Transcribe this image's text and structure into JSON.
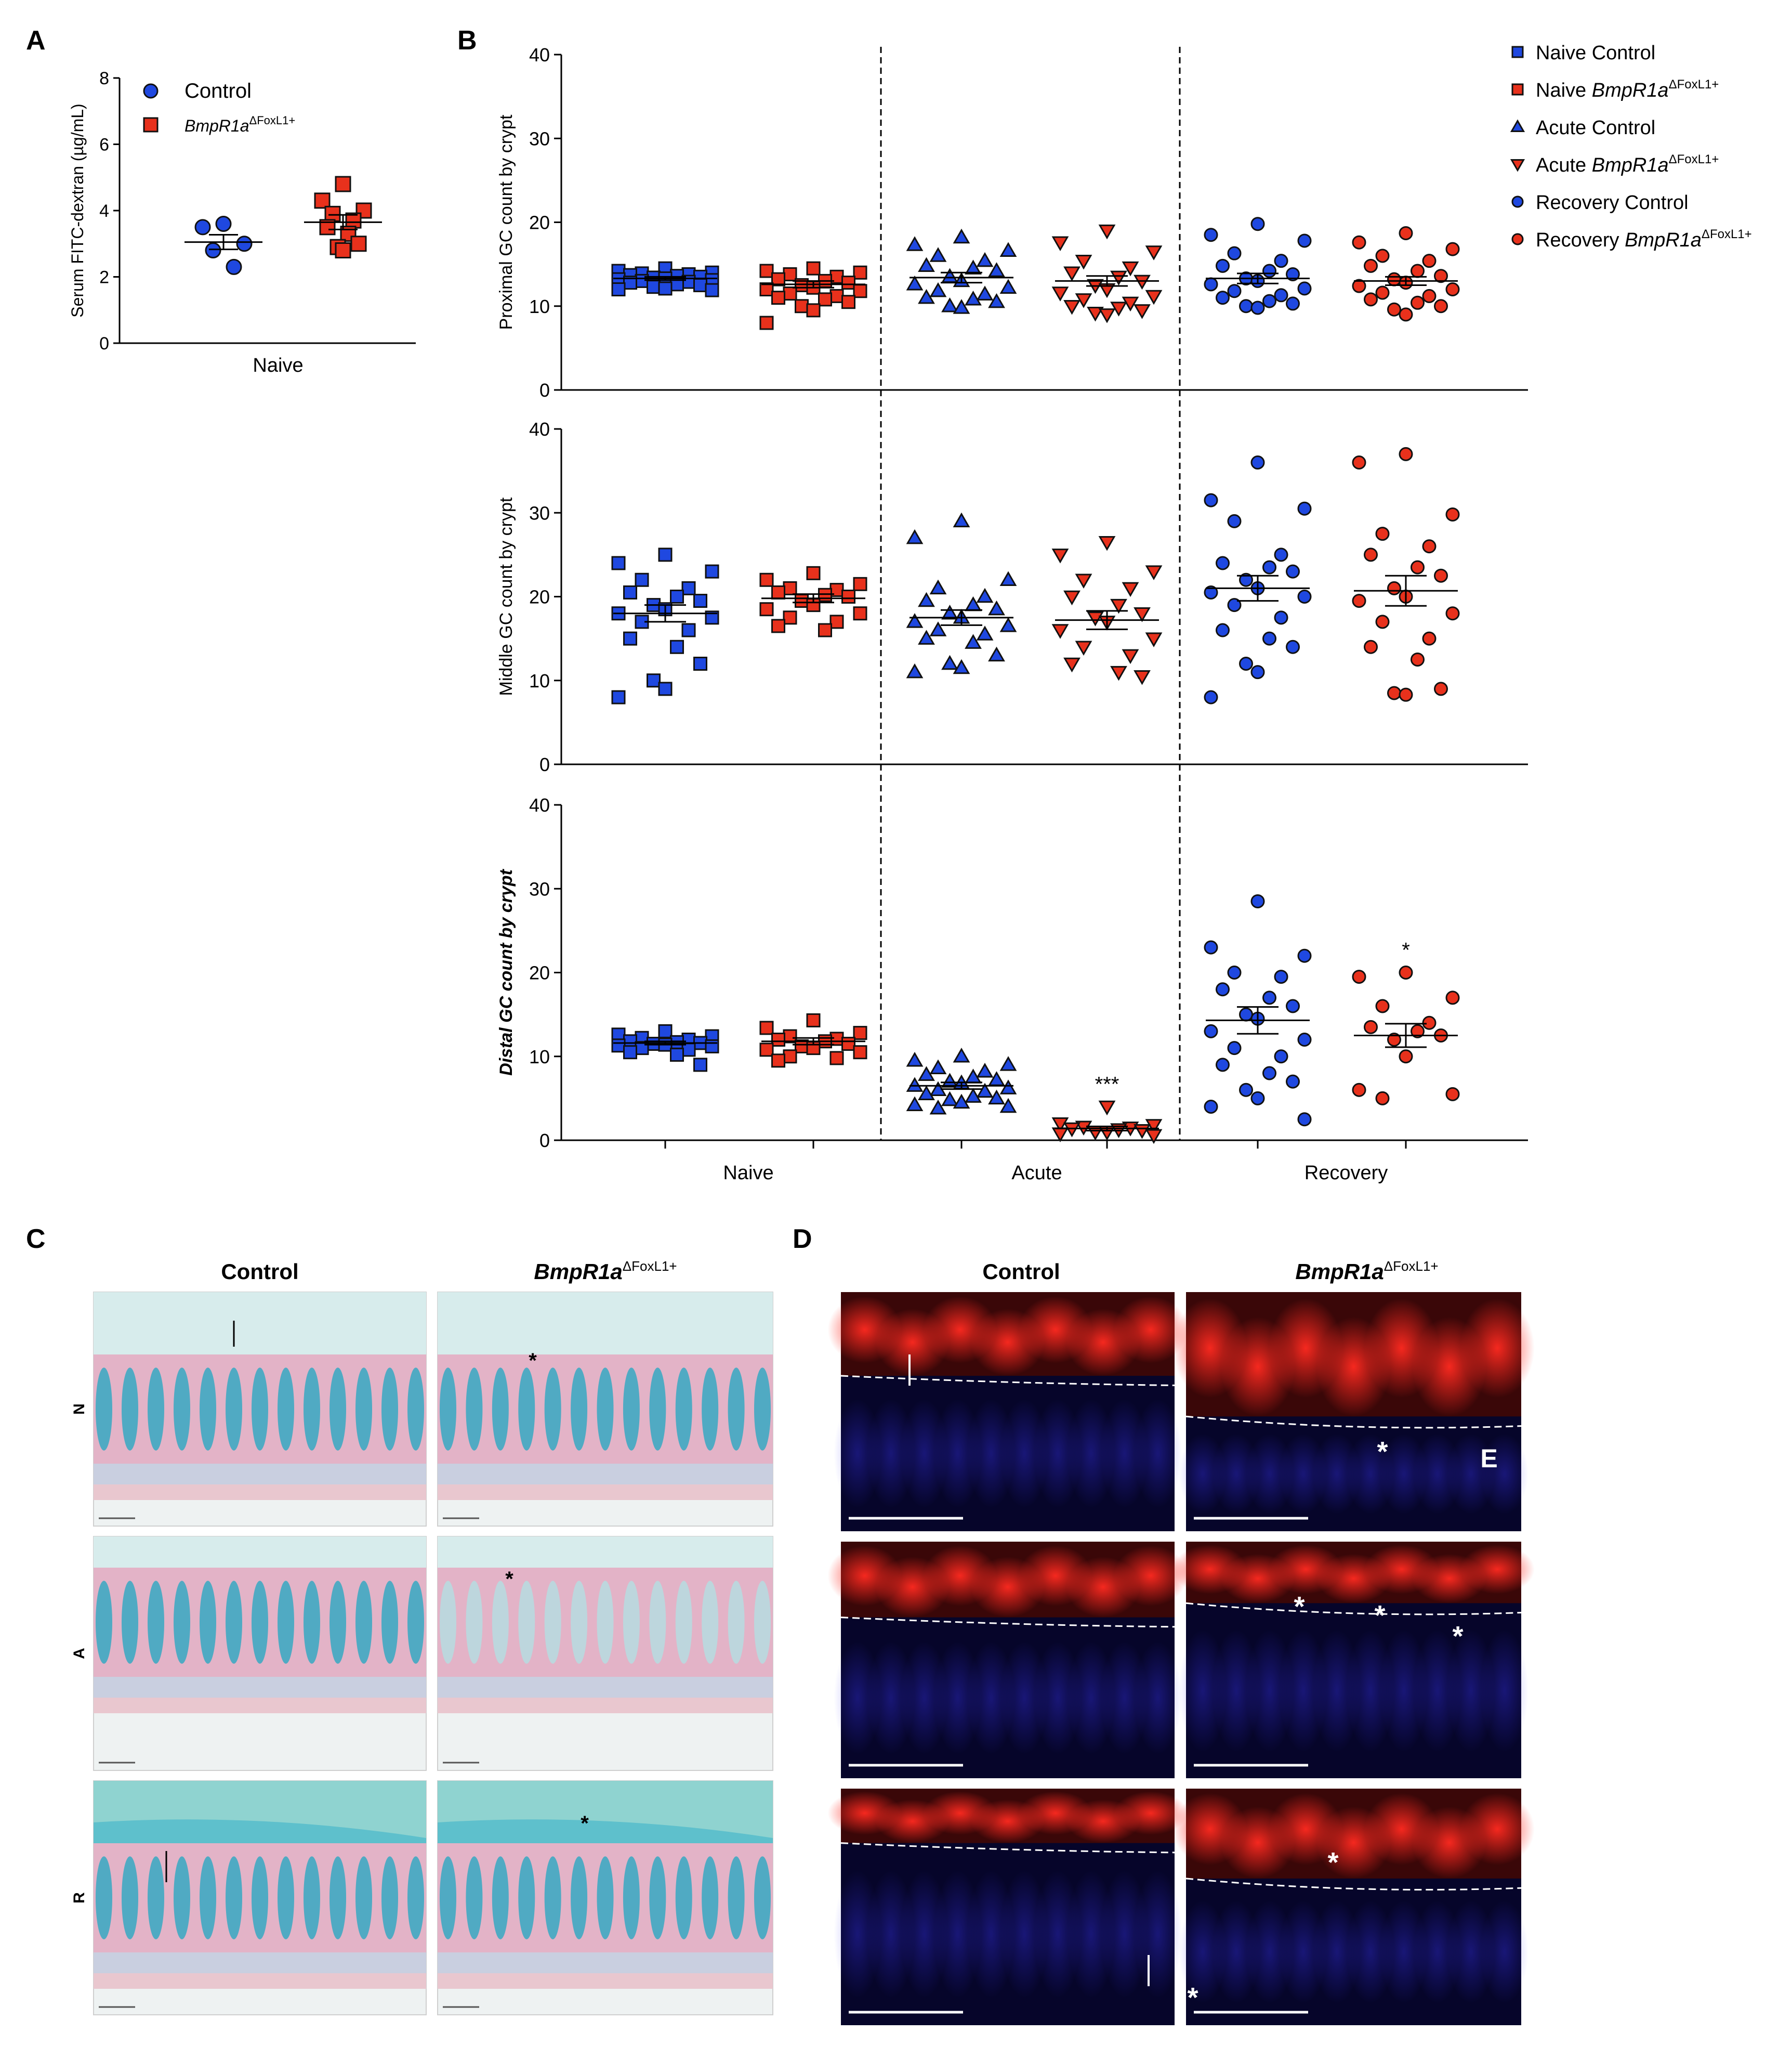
{
  "panel_labels": {
    "a": "A",
    "b": "B",
    "c": "C",
    "d": "D"
  },
  "colors": {
    "control": "#1f48e0",
    "mutant": "#e8311c",
    "axis": "#000000",
    "ihc_blue": "#4fb3c9",
    "ihc_pink": "#d68fb1",
    "fluor_red": "#d01a12",
    "fluor_blue": "#1e1ba8"
  },
  "chart_data": [
    {
      "id": "A",
      "type": "scatter",
      "ylabel": "Serum FITC-dextran (µg/mL)",
      "xlabel": "Naive",
      "ylim": [
        0,
        8
      ],
      "yticks": [
        "0",
        "2",
        "4",
        "6",
        "8"
      ],
      "legend": [
        {
          "name": "Control",
          "marker": "circle",
          "color": "#1f48e0"
        },
        {
          "name": "BmpR1a",
          "sup": "ΔFoxL1+",
          "marker": "square",
          "color": "#e8311c"
        }
      ],
      "series": [
        {
          "name": "Control",
          "marker": "circle",
          "color": "#1f48e0",
          "values": [
            3.6,
            3.5,
            3.0,
            2.8,
            2.3
          ],
          "mean": 3.05,
          "sem": 0.22
        },
        {
          "name": "BmpR1a ΔFoxL1+",
          "marker": "square",
          "color": "#e8311c",
          "values": [
            4.8,
            4.3,
            4.0,
            3.9,
            3.7,
            3.5,
            3.3,
            3.0,
            2.9,
            2.8
          ],
          "mean": 3.65,
          "sem": 0.22
        }
      ]
    },
    {
      "id": "B",
      "type": "scatter",
      "ylim": [
        0,
        40
      ],
      "yticks": [
        "0",
        "10",
        "20",
        "30",
        "40"
      ],
      "xgroups": [
        "Naive",
        "Acute",
        "Recovery"
      ],
      "legend": [
        {
          "name": "Naive Control",
          "marker": "square",
          "color": "#1f48e0"
        },
        {
          "name": "Naive ",
          "italic": "BmpR1a",
          "sup": "ΔFoxL1+",
          "marker": "square",
          "color": "#e8311c"
        },
        {
          "name": "Acute Control",
          "marker": "triangle",
          "color": "#1f48e0"
        },
        {
          "name": "Acute ",
          "italic": "BmpR1a",
          "sup": "ΔFoxL1+",
          "marker": "triangle-down",
          "color": "#e8311c"
        },
        {
          "name": "Recovery Control",
          "marker": "circle",
          "color": "#1f48e0"
        },
        {
          "name": "Recovery ",
          "italic": "BmpR1a",
          "sup": "ΔFoxL1+",
          "marker": "circle",
          "color": "#e8311c"
        }
      ],
      "panels": [
        {
          "ylabel": "Proximal GC count by crypt",
          "ylabel_style": "normal",
          "groups": [
            {
              "name": "Naive Control",
              "values": [
                14.5,
                14.2,
                14.0,
                13.9,
                13.8,
                13.7,
                13.6,
                13.5,
                13.4,
                13.3,
                13.2,
                13.1,
                13.0,
                12.9,
                12.8,
                12.6,
                12.5,
                12.3,
                12.1,
                12.0,
                11.9
              ],
              "mean": 13.3,
              "sem": 0.2
            },
            {
              "name": "Naive BmpR1a",
              "values": [
                14.5,
                14.2,
                14.0,
                13.8,
                13.5,
                13.2,
                13.0,
                12.8,
                12.5,
                12.2,
                12.0,
                11.8,
                11.5,
                11.2,
                11.0,
                10.8,
                10.5,
                10.0,
                9.5,
                8.0
              ],
              "mean": 12.6,
              "sem": 0.4
            },
            {
              "name": "Acute Control",
              "values": [
                18.2,
                17.3,
                16.6,
                16.0,
                15.4,
                14.8,
                14.5,
                14.2,
                13.5,
                13.0,
                12.6,
                12.2,
                11.8,
                11.4,
                11.0,
                10.8,
                10.5,
                10.0,
                9.8
              ],
              "mean": 13.4,
              "sem": 0.6
            },
            {
              "name": "Acute BmpR1a",
              "values": [
                19.0,
                17.6,
                16.5,
                15.4,
                14.6,
                14.0,
                13.5,
                13.0,
                12.5,
                12.0,
                11.6,
                11.2,
                10.8,
                10.4,
                10.0,
                9.8,
                9.5,
                9.2,
                9.0
              ],
              "mean": 13.0,
              "sem": 0.6
            },
            {
              "name": "Recovery Control",
              "values": [
                19.8,
                18.5,
                17.8,
                16.3,
                15.4,
                14.8,
                14.2,
                13.8,
                13.3,
                13.0,
                12.6,
                12.1,
                11.8,
                11.3,
                11.0,
                10.6,
                10.3,
                10.0,
                9.8
              ],
              "mean": 13.3,
              "sem": 0.6
            },
            {
              "name": "Recovery BmpR1a",
              "values": [
                18.7,
                17.6,
                16.8,
                16.0,
                15.4,
                14.8,
                14.2,
                13.6,
                13.2,
                12.8,
                12.4,
                12.0,
                11.6,
                11.2,
                10.8,
                10.4,
                10.0,
                9.6,
                9.0
              ],
              "mean": 13.0,
              "sem": 0.5
            }
          ],
          "annotations": []
        },
        {
          "ylabel": "Middle GC count by crypt",
          "ylabel_style": "normal",
          "groups": [
            {
              "name": "Naive Control",
              "values": [
                25.0,
                24.0,
                23.0,
                22.0,
                21.0,
                20.5,
                20.0,
                19.5,
                19.0,
                18.5,
                18.0,
                17.5,
                17.0,
                16.0,
                15.0,
                14.0,
                12.0,
                10.0,
                9.0,
                8.0
              ],
              "mean": 18.0,
              "sem": 1.0
            },
            {
              "name": "Naive BmpR1a",
              "values": [
                22.8,
                22.0,
                21.5,
                21.0,
                20.8,
                20.5,
                20.2,
                20.0,
                19.5,
                19.0,
                18.5,
                18.0,
                17.5,
                17.0,
                16.5,
                16.0
              ],
              "mean": 19.8,
              "sem": 0.5
            },
            {
              "name": "Acute Control",
              "values": [
                29.0,
                27.0,
                22.0,
                21.0,
                20.0,
                19.5,
                19.0,
                18.5,
                18.0,
                17.5,
                17.0,
                16.5,
                16.0,
                15.5,
                15.0,
                14.5,
                13.0,
                12.0,
                11.5,
                11.0
              ],
              "mean": 17.5,
              "sem": 0.9
            },
            {
              "name": "Acute BmpR1a",
              "values": [
                26.5,
                25.0,
                23.0,
                22.0,
                21.0,
                20.0,
                19.0,
                18.0,
                17.5,
                17.0,
                16.0,
                15.0,
                14.0,
                13.0,
                12.0,
                11.0,
                10.5
              ],
              "mean": 17.2,
              "sem": 1.1
            },
            {
              "name": "Recovery Control",
              "values": [
                36.0,
                31.5,
                30.5,
                29.0,
                25.0,
                24.0,
                23.5,
                23.0,
                22.0,
                21.0,
                20.5,
                20.0,
                19.0,
                17.5,
                16.0,
                15.0,
                14.0,
                12.0,
                11.0,
                8.0
              ],
              "mean": 21.0,
              "sem": 1.5
            },
            {
              "name": "Recovery BmpR1a",
              "values": [
                37.0,
                36.0,
                29.8,
                27.5,
                26.0,
                25.0,
                23.5,
                22.5,
                21.0,
                20.0,
                19.5,
                18.0,
                17.0,
                15.0,
                14.0,
                12.5,
                9.0,
                8.5,
                8.3
              ],
              "mean": 20.7,
              "sem": 1.8
            }
          ],
          "annotations": []
        },
        {
          "ylabel": "Distal GC count by crypt",
          "ylabel_style": "bold-italic",
          "groups": [
            {
              "name": "Naive Control",
              "values": [
                13.0,
                12.6,
                12.4,
                12.2,
                12.0,
                11.8,
                11.7,
                11.6,
                11.5,
                11.4,
                11.3,
                11.2,
                11.0,
                10.8,
                10.5,
                10.2,
                9.0
              ],
              "mean": 11.6,
              "sem": 0.2
            },
            {
              "name": "Naive BmpR1a",
              "values": [
                14.3,
                13.4,
                12.8,
                12.4,
                12.1,
                12.0,
                11.8,
                11.5,
                11.2,
                11.0,
                10.8,
                10.5,
                10.0,
                9.8,
                9.5
              ],
              "mean": 11.8,
              "sem": 0.4
            },
            {
              "name": "Acute Control",
              "values": [
                10.0,
                9.5,
                9.0,
                8.6,
                8.2,
                7.8,
                7.5,
                7.2,
                7.0,
                6.8,
                6.5,
                6.2,
                6.0,
                5.8,
                5.5,
                5.2,
                5.0,
                4.8,
                4.5,
                4.2,
                4.0,
                3.8
              ],
              "mean": 6.5,
              "sem": 0.4
            },
            {
              "name": "Acute BmpR1a",
              "values": [
                4.0,
                2.0,
                1.8,
                1.6,
                1.5,
                1.4,
                1.3,
                1.2,
                1.0,
                1.0,
                0.8,
                0.6
              ],
              "mean": 1.4,
              "sem": 0.25
            },
            {
              "name": "Recovery Control",
              "values": [
                28.5,
                23.0,
                22.0,
                20.0,
                19.5,
                18.0,
                17.0,
                16.0,
                15.0,
                14.5,
                13.0,
                12.0,
                11.0,
                10.0,
                9.0,
                8.0,
                7.0,
                6.0,
                5.0,
                4.0,
                2.5
              ],
              "mean": 14.3,
              "sem": 1.6
            },
            {
              "name": "Recovery BmpR1a",
              "values": [
                20.0,
                19.5,
                17.0,
                16.0,
                14.0,
                13.5,
                13.0,
                12.5,
                12.0,
                10.0,
                6.0,
                5.5,
                5.0
              ],
              "mean": 12.5,
              "sem": 1.4
            }
          ],
          "annotations": [
            {
              "group": 3,
              "text": "***"
            },
            {
              "group": 5,
              "text": "*"
            }
          ]
        }
      ]
    }
  ],
  "panel_c": {
    "col_labels": [
      "Control",
      "BmpR1a"
    ],
    "col_sup": "ΔFoxL1+",
    "row_labels": [
      "N",
      "A",
      "R"
    ],
    "markers": [
      "*",
      "*",
      "*"
    ]
  },
  "panel_d": {
    "col_labels": [
      "Control",
      "BmpR1a"
    ],
    "col_sup": "ΔFoxL1+",
    "letters": [
      "E"
    ],
    "markers": [
      "*"
    ]
  }
}
